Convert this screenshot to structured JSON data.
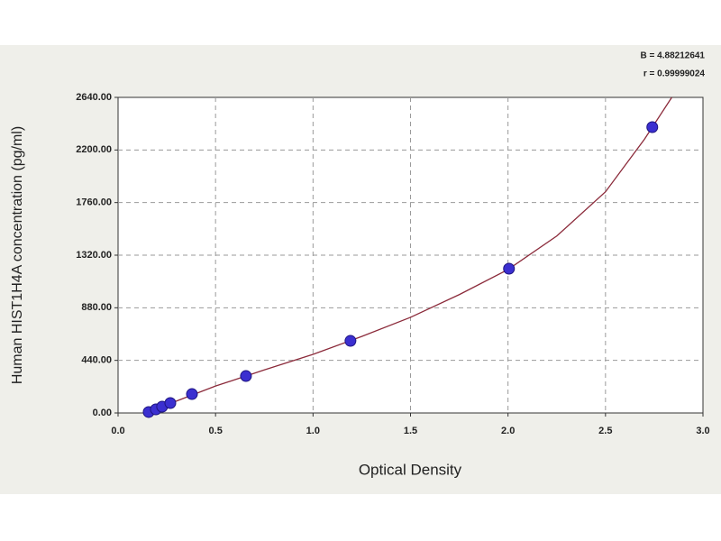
{
  "chart_data": {
    "type": "scatter",
    "xlabel": "Optical Density",
    "ylabel": "Human HIST1H4A concentration (pg/ml)",
    "annotations": [
      "B = 4.88212641",
      "r = 0.99999024"
    ],
    "xlim": [
      0,
      3
    ],
    "ylim": [
      0,
      2640
    ],
    "xticks": [
      {
        "value": 0,
        "label": "0.0"
      },
      0.5,
      {
        "value": 1,
        "label": "1.0"
      },
      1.5,
      {
        "value": 2,
        "label": "2.0"
      },
      2.5,
      {
        "value": 3,
        "label": "3.0"
      }
    ],
    "yticks": [
      {
        "value": 0,
        "label": "0.00"
      },
      {
        "value": 440,
        "label": "440.00"
      },
      {
        "value": 880,
        "label": "880.00"
      },
      {
        "value": 1320,
        "label": "1320.00"
      },
      {
        "value": 1760,
        "label": "1760.00"
      },
      {
        "value": 2200,
        "label": "2200.00"
      },
      {
        "value": 2640,
        "label": "2640.00"
      }
    ],
    "grid": true,
    "series": [
      {
        "kind": "points",
        "color": "#3b2fd0",
        "x": [
          0.157,
          0.194,
          0.226,
          0.268,
          0.379,
          0.656,
          1.192,
          2.005,
          2.74
        ],
        "values": [
          8,
          30,
          53,
          83,
          158,
          309,
          603,
          1207,
          2391
        ]
      },
      {
        "kind": "line",
        "color": "#8b2a3a",
        "x": [
          0.15,
          0.3,
          0.5,
          0.75,
          1.0,
          1.25,
          1.5,
          1.75,
          2.0,
          2.25,
          2.5,
          2.7,
          2.84
        ],
        "values": [
          2,
          100,
          225,
          360,
          490,
          640,
          800,
          990,
          1200,
          1480,
          1850,
          2290,
          2640
        ]
      }
    ]
  }
}
